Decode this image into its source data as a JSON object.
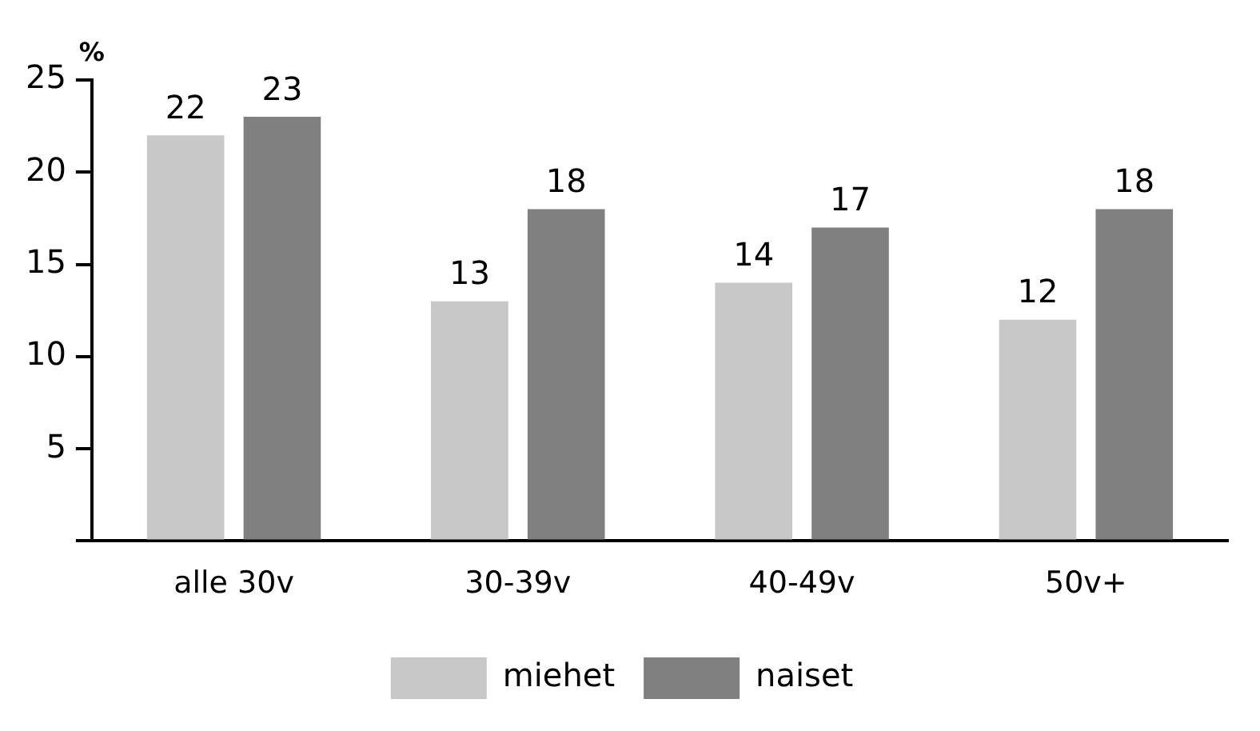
{
  "chart_data": {
    "type": "bar",
    "ylabel": "%",
    "categories": [
      "alle 30v",
      "30-39v",
      "40-49v",
      "50v+"
    ],
    "series": [
      {
        "name": "miehet",
        "color": "#c8c8c8",
        "values": [
          22,
          13,
          14,
          12
        ]
      },
      {
        "name": "naiset",
        "color": "#808080",
        "values": [
          23,
          18,
          17,
          18
        ]
      }
    ],
    "ylim": [
      0,
      25
    ],
    "yticks": [
      {
        "value": 0,
        "label": null
      },
      5,
      10,
      15,
      20,
      25
    ],
    "data_labels": true,
    "grid": false,
    "legend": "bottom"
  }
}
